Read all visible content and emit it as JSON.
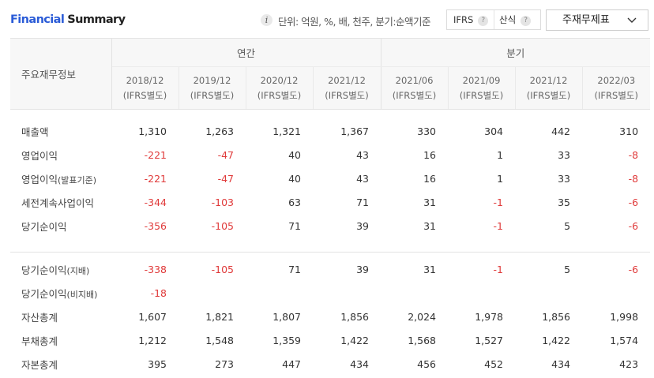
{
  "header": {
    "title_part1": "Financial",
    "title_part2": "Summary",
    "unit_text": "단위: 억원, %, 배, 천주, 분기:순액기준",
    "toggle_ifrs": "IFRS",
    "toggle_calc": "산식",
    "help_glyph": "?",
    "info_glyph": "i",
    "select_value": "주재무제표"
  },
  "icons": {
    "info": "info-icon",
    "help": "help-icon",
    "dropdown": "chevron-down-icon"
  },
  "colors": {
    "brand_blue": "#2a5bd7",
    "negative": "#e03a3a",
    "header_bg": "#f7f7f7"
  },
  "table": {
    "row_header_label": "주요재무정보",
    "group_annual": "연간",
    "group_quarter": "분기",
    "columns": [
      {
        "period": "2018/12",
        "basis": "(IFRS별도)"
      },
      {
        "period": "2019/12",
        "basis": "(IFRS별도)"
      },
      {
        "period": "2020/12",
        "basis": "(IFRS별도)"
      },
      {
        "period": "2021/12",
        "basis": "(IFRS별도)"
      },
      {
        "period": "2021/06",
        "basis": "(IFRS별도)"
      },
      {
        "period": "2021/09",
        "basis": "(IFRS별도)"
      },
      {
        "period": "2021/12",
        "basis": "(IFRS별도)"
      },
      {
        "period": "2022/03",
        "basis": "(IFRS별도)"
      }
    ],
    "rows": [
      {
        "label": "매출액",
        "label_small": "",
        "values": [
          "1,310",
          "1,263",
          "1,321",
          "1,367",
          "330",
          "304",
          "442",
          "310"
        ]
      },
      {
        "label": "영업이익",
        "label_small": "",
        "values": [
          "-221",
          "-47",
          "40",
          "43",
          "16",
          "1",
          "33",
          "-8"
        ]
      },
      {
        "label": "영업이익",
        "label_small": "(발표기준)",
        "values": [
          "-221",
          "-47",
          "40",
          "43",
          "16",
          "1",
          "33",
          "-8"
        ]
      },
      {
        "label": "세전계속사업이익",
        "label_small": "",
        "values": [
          "-344",
          "-103",
          "63",
          "71",
          "31",
          "-1",
          "35",
          "-6"
        ]
      },
      {
        "label": "당기순이익",
        "label_small": "",
        "values": [
          "-356",
          "-105",
          "71",
          "39",
          "31",
          "-1",
          "5",
          "-6"
        ]
      },
      {
        "label": "당기순이익",
        "label_small": "(지배)",
        "values": [
          "-338",
          "-105",
          "71",
          "39",
          "31",
          "-1",
          "5",
          "-6"
        ]
      },
      {
        "label": "당기순이익",
        "label_small": "(비지배)",
        "values": [
          "-18",
          "",
          "",
          "",
          "",
          "",
          "",
          ""
        ]
      },
      {
        "label": "자산총계",
        "label_small": "",
        "values": [
          "1,607",
          "1,821",
          "1,807",
          "1,856",
          "2,024",
          "1,978",
          "1,856",
          "1,998"
        ]
      },
      {
        "label": "부채총계",
        "label_small": "",
        "values": [
          "1,212",
          "1,548",
          "1,359",
          "1,422",
          "1,568",
          "1,527",
          "1,422",
          "1,574"
        ]
      },
      {
        "label": "자본총계",
        "label_small": "",
        "values": [
          "395",
          "273",
          "447",
          "434",
          "456",
          "452",
          "434",
          "423"
        ]
      }
    ]
  }
}
